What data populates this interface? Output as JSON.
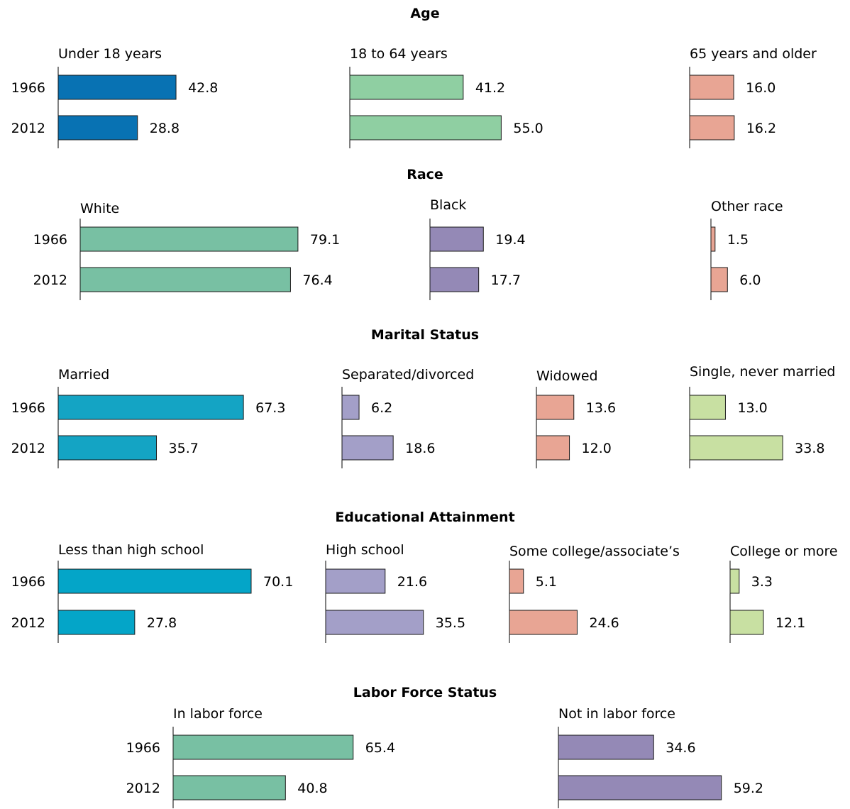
{
  "chart_data": {
    "type": "bar",
    "orientation": "horizontal",
    "years": [
      "1966",
      "2012"
    ],
    "sections": [
      {
        "title": "Age",
        "panels": [
          {
            "label": "Under 18 years",
            "color": "#0872b3",
            "values": [
              42.8,
              28.8
            ],
            "value_labels": [
              "42.8",
              "28.8"
            ]
          },
          {
            "label": "18 to 64 years",
            "color": "#8fcfa2",
            "values": [
              41.2,
              55.0
            ],
            "value_labels": [
              "41.2",
              "55.0"
            ]
          },
          {
            "label": "65 years and older",
            "color": "#e8a594",
            "values": [
              16.0,
              16.2
            ],
            "value_labels": [
              "16.0",
              "16.2"
            ]
          }
        ]
      },
      {
        "title": "Race",
        "panels": [
          {
            "label": "White",
            "color": "#78c0a3",
            "values": [
              79.1,
              76.4
            ],
            "value_labels": [
              "79.1",
              "76.4"
            ]
          },
          {
            "label": "Black",
            "color": "#9489b6",
            "values": [
              19.4,
              17.7
            ],
            "value_labels": [
              "19.4",
              "17.7"
            ]
          },
          {
            "label": "Other race",
            "color": "#e8a594",
            "values": [
              1.5,
              6.0
            ],
            "value_labels": [
              "1.5",
              "6.0"
            ]
          }
        ]
      },
      {
        "title": "Marital Status",
        "panels": [
          {
            "label": "Married",
            "color": "#14a4c4",
            "values": [
              67.3,
              35.7
            ],
            "value_labels": [
              "67.3",
              "35.7"
            ]
          },
          {
            "label": "Separated/divorced",
            "color": "#a39fc8",
            "values": [
              6.2,
              18.6
            ],
            "value_labels": [
              "6.2",
              "18.6"
            ]
          },
          {
            "label": "Widowed",
            "color": "#e8a594",
            "values": [
              13.6,
              12.0
            ],
            "value_labels": [
              "13.6",
              "12.0"
            ]
          },
          {
            "label": "Single, never married",
            "color": "#c8e0a2",
            "values": [
              13.0,
              33.8
            ],
            "value_labels": [
              "13.0",
              "33.8"
            ]
          }
        ]
      },
      {
        "title": "Educational Attainment",
        "panels": [
          {
            "label": "Less than high school",
            "color": "#04a5c8",
            "values": [
              70.1,
              27.8
            ],
            "value_labels": [
              "70.1",
              "27.8"
            ]
          },
          {
            "label": "High school",
            "color": "#a39fc8",
            "values": [
              21.6,
              35.5
            ],
            "value_labels": [
              "21.6",
              "35.5"
            ]
          },
          {
            "label": "Some college/associate’s",
            "color": "#e8a594",
            "values": [
              5.1,
              24.6
            ],
            "value_labels": [
              "5.1",
              "24.6"
            ]
          },
          {
            "label": "College or more",
            "color": "#c8e0a2",
            "values": [
              3.3,
              12.1
            ],
            "value_labels": [
              "3.3",
              "12.1"
            ]
          }
        ]
      },
      {
        "title": "Labor Force Status",
        "panels": [
          {
            "label": "In labor force",
            "color": "#78c0a3",
            "values": [
              65.4,
              40.8
            ],
            "value_labels": [
              "65.4",
              "40.8"
            ]
          },
          {
            "label": "Not in labor force",
            "color": "#9489b6",
            "values": [
              34.6,
              59.2
            ],
            "value_labels": [
              "34.6",
              "59.2"
            ]
          }
        ]
      }
    ]
  }
}
